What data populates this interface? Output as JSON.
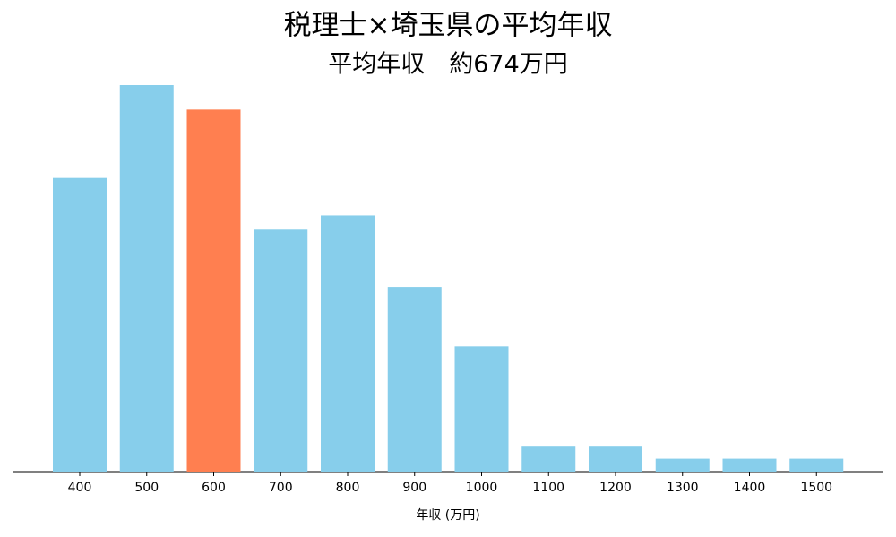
{
  "chart_data": {
    "type": "bar",
    "title": "税理士×埼玉県の平均年収",
    "subtitle": "平均年収　約674万円",
    "x_label": "年収 (万円)",
    "categories": [
      "400",
      "500",
      "600",
      "700",
      "800",
      "900",
      "1000",
      "1100",
      "1200",
      "1300",
      "1400",
      "1500"
    ],
    "values": [
      22.8,
      30,
      28.1,
      18.8,
      19.9,
      14.3,
      9.7,
      2,
      2,
      1,
      1,
      1
    ],
    "colors": [
      "#87ceeb",
      "#87ceeb",
      "#ff7f50",
      "#87ceeb",
      "#87ceeb",
      "#87ceeb",
      "#87ceeb",
      "#87ceeb",
      "#87ceeb",
      "#87ceeb",
      "#87ceeb",
      "#87ceeb"
    ],
    "ylim": [
      0,
      30
    ]
  }
}
